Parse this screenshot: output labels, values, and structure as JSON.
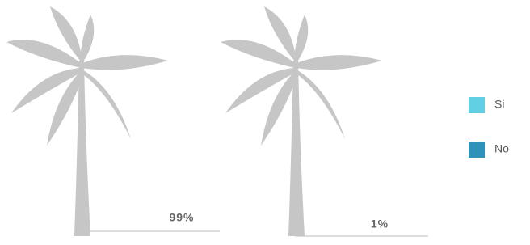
{
  "chart_data": {
    "type": "pictogram",
    "base_color": "#c6c6c6",
    "series": [
      {
        "name": "Si",
        "color": "#62d0e4",
        "values": [
          99
        ],
        "value_labels": [
          "99%"
        ]
      },
      {
        "name": "No",
        "color": "#2f93b9",
        "values": [
          1
        ],
        "value_labels": [
          "1%"
        ]
      }
    ],
    "ylim": [
      0,
      100
    ]
  }
}
